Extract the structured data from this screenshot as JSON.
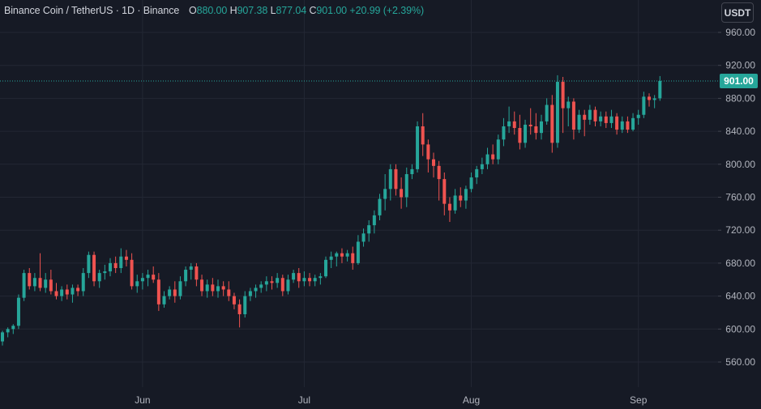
{
  "legend": {
    "symbol": "Binance Coin / TetherUS",
    "interval": "1D",
    "exchange": "Binance",
    "open_label": "O",
    "open": "880.00",
    "high_label": "H",
    "high": "907.38",
    "low_label": "L",
    "low": "877.04",
    "close_label": "C",
    "close": "901.00",
    "change": "+20.99 (+2.39%)"
  },
  "currency": "USDT",
  "last_price": "901.00",
  "colors": {
    "up": "#26a69a",
    "down": "#ef5350",
    "background": "#161a25",
    "grid": "#232734",
    "text": "#b2b5be"
  },
  "chart_data": {
    "type": "candlestick",
    "ylim": [
      540,
      980
    ],
    "y_ticks": [
      "560.00",
      "600.00",
      "640.00",
      "680.00",
      "720.00",
      "760.00",
      "800.00",
      "840.00",
      "880.00",
      "920.00",
      "960.00"
    ],
    "x_ticks": [
      {
        "label": "Jun",
        "index": 26
      },
      {
        "label": "Jul",
        "index": 56
      },
      {
        "label": "Aug",
        "index": 87
      },
      {
        "label": "Sep",
        "index": 118
      }
    ],
    "last_price": 901.0,
    "candles": [
      [
        585,
        598,
        580,
        596
      ],
      [
        596,
        602,
        590,
        600
      ],
      [
        600,
        606,
        594,
        604
      ],
      [
        604,
        642,
        600,
        638
      ],
      [
        638,
        672,
        634,
        668
      ],
      [
        668,
        674,
        648,
        652
      ],
      [
        652,
        668,
        646,
        662
      ],
      [
        662,
        692,
        646,
        650
      ],
      [
        650,
        668,
        644,
        660
      ],
      [
        660,
        672,
        642,
        646
      ],
      [
        646,
        656,
        636,
        640
      ],
      [
        640,
        652,
        634,
        648
      ],
      [
        648,
        654,
        636,
        642
      ],
      [
        642,
        654,
        632,
        650
      ],
      [
        650,
        654,
        640,
        646
      ],
      [
        646,
        674,
        640,
        668
      ],
      [
        668,
        694,
        662,
        690
      ],
      [
        690,
        694,
        652,
        658
      ],
      [
        658,
        672,
        650,
        668
      ],
      [
        668,
        678,
        660,
        670
      ],
      [
        670,
        686,
        664,
        680
      ],
      [
        680,
        688,
        668,
        674
      ],
      [
        674,
        698,
        668,
        688
      ],
      [
        688,
        696,
        676,
        684
      ],
      [
        684,
        692,
        648,
        652
      ],
      [
        652,
        666,
        644,
        658
      ],
      [
        658,
        668,
        648,
        662
      ],
      [
        662,
        672,
        652,
        666
      ],
      [
        666,
        676,
        656,
        660
      ],
      [
        660,
        668,
        622,
        630
      ],
      [
        630,
        646,
        626,
        640
      ],
      [
        640,
        652,
        636,
        648
      ],
      [
        648,
        658,
        632,
        640
      ],
      [
        640,
        664,
        636,
        658
      ],
      [
        658,
        676,
        652,
        672
      ],
      [
        672,
        680,
        660,
        676
      ],
      [
        676,
        680,
        652,
        660
      ],
      [
        660,
        666,
        640,
        646
      ],
      [
        646,
        660,
        638,
        654
      ],
      [
        654,
        662,
        640,
        646
      ],
      [
        646,
        660,
        638,
        652
      ],
      [
        652,
        658,
        640,
        648
      ],
      [
        648,
        658,
        634,
        640
      ],
      [
        640,
        644,
        624,
        630
      ],
      [
        630,
        636,
        602,
        618
      ],
      [
        618,
        646,
        614,
        640
      ],
      [
        640,
        650,
        634,
        646
      ],
      [
        646,
        654,
        638,
        650
      ],
      [
        650,
        658,
        644,
        654
      ],
      [
        654,
        664,
        646,
        658
      ],
      [
        658,
        664,
        648,
        656
      ],
      [
        656,
        668,
        650,
        662
      ],
      [
        662,
        666,
        640,
        646
      ],
      [
        646,
        666,
        642,
        660
      ],
      [
        660,
        672,
        656,
        668
      ],
      [
        668,
        674,
        650,
        658
      ],
      [
        658,
        670,
        652,
        662
      ],
      [
        662,
        668,
        652,
        658
      ],
      [
        658,
        666,
        652,
        662
      ],
      [
        662,
        668,
        654,
        664
      ],
      [
        664,
        688,
        662,
        684
      ],
      [
        684,
        694,
        674,
        688
      ],
      [
        688,
        694,
        676,
        692
      ],
      [
        692,
        698,
        680,
        688
      ],
      [
        688,
        696,
        682,
        692
      ],
      [
        692,
        700,
        672,
        680
      ],
      [
        680,
        714,
        678,
        706
      ],
      [
        706,
        722,
        700,
        716
      ],
      [
        716,
        732,
        706,
        726
      ],
      [
        726,
        744,
        716,
        738
      ],
      [
        738,
        764,
        732,
        758
      ],
      [
        758,
        788,
        744,
        770
      ],
      [
        770,
        800,
        756,
        794
      ],
      [
        794,
        800,
        762,
        770
      ],
      [
        770,
        784,
        746,
        760
      ],
      [
        760,
        796,
        748,
        788
      ],
      [
        788,
        800,
        782,
        794
      ],
      [
        794,
        852,
        790,
        846
      ],
      [
        846,
        862,
        810,
        824
      ],
      [
        824,
        830,
        790,
        806
      ],
      [
        806,
        814,
        784,
        798
      ],
      [
        798,
        804,
        756,
        782
      ],
      [
        782,
        790,
        738,
        752
      ],
      [
        752,
        760,
        730,
        744
      ],
      [
        744,
        770,
        740,
        762
      ],
      [
        762,
        772,
        748,
        756
      ],
      [
        756,
        774,
        746,
        770
      ],
      [
        770,
        790,
        766,
        784
      ],
      [
        784,
        798,
        776,
        794
      ],
      [
        794,
        808,
        788,
        800
      ],
      [
        800,
        820,
        794,
        812
      ],
      [
        812,
        824,
        800,
        806
      ],
      [
        806,
        836,
        800,
        830
      ],
      [
        830,
        856,
        822,
        846
      ],
      [
        846,
        870,
        838,
        852
      ],
      [
        852,
        864,
        836,
        844
      ],
      [
        844,
        860,
        818,
        826
      ],
      [
        826,
        854,
        820,
        848
      ],
      [
        848,
        868,
        836,
        846
      ],
      [
        846,
        862,
        830,
        838
      ],
      [
        838,
        860,
        830,
        852
      ],
      [
        852,
        880,
        848,
        872
      ],
      [
        872,
        884,
        814,
        826
      ],
      [
        826,
        908,
        820,
        900
      ],
      [
        900,
        906,
        838,
        868
      ],
      [
        868,
        882,
        846,
        876
      ],
      [
        876,
        880,
        830,
        842
      ],
      [
        842,
        866,
        838,
        860
      ],
      [
        860,
        866,
        834,
        854
      ],
      [
        854,
        872,
        848,
        866
      ],
      [
        866,
        870,
        846,
        852
      ],
      [
        852,
        864,
        846,
        858
      ],
      [
        858,
        864,
        844,
        850
      ],
      [
        850,
        866,
        844,
        858
      ],
      [
        858,
        862,
        836,
        842
      ],
      [
        842,
        858,
        838,
        852
      ],
      [
        852,
        858,
        838,
        842
      ],
      [
        842,
        862,
        840,
        856
      ],
      [
        856,
        866,
        848,
        860
      ],
      [
        860,
        888,
        856,
        882
      ],
      [
        882,
        886,
        870,
        878
      ],
      [
        878,
        884,
        868,
        880
      ],
      [
        880,
        907,
        877,
        901
      ]
    ]
  }
}
